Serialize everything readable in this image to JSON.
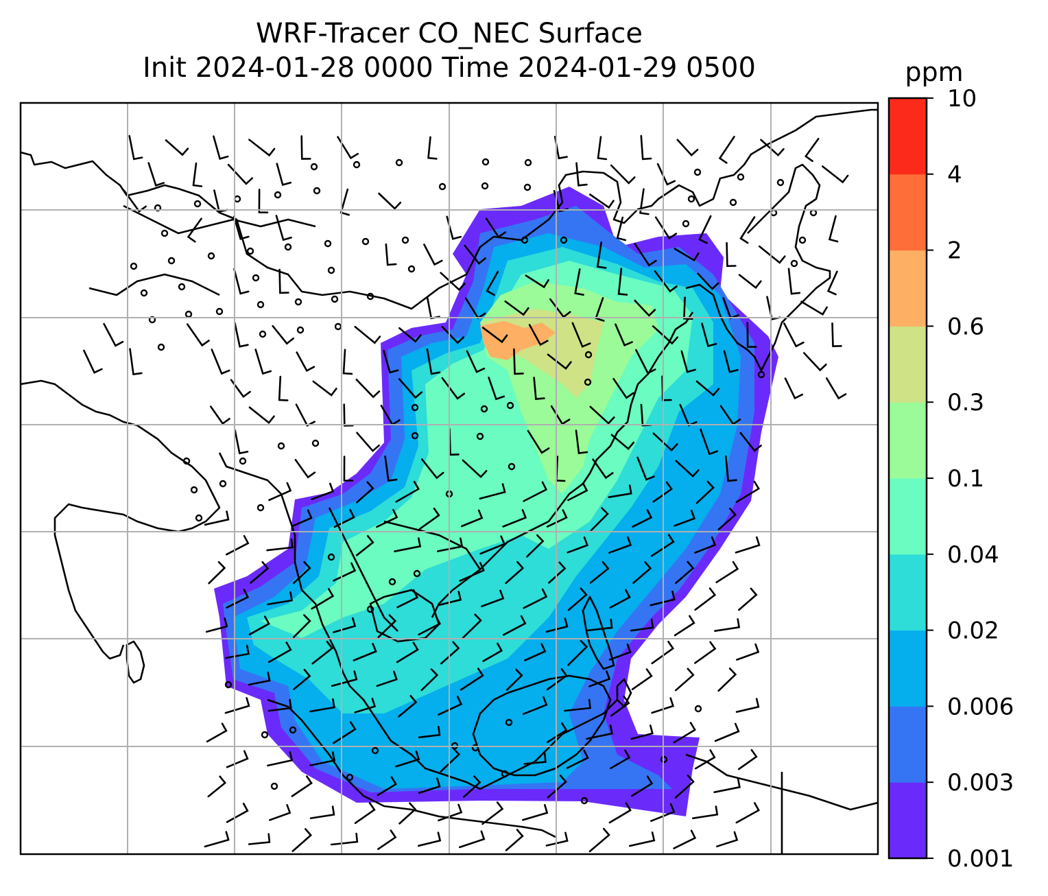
{
  "title": {
    "line1": "WRF-Tracer CO_NEC Surface",
    "line2": "Init 2024-01-28 0000 Time 2024-01-29 0500"
  },
  "colorbar": {
    "unit": "ppm",
    "levels": [
      "0.001",
      "0.003",
      "0.006",
      "0.02",
      "0.04",
      "0.1",
      "0.3",
      "0.6",
      "2",
      "4",
      "10"
    ],
    "colors": [
      "#6a2bfa",
      "#3575f4",
      "#05aeec",
      "#2edcd8",
      "#6afcc0",
      "#9afb98",
      "#cfe285",
      "#fdaf64",
      "#fe6e39",
      "#fc2a1a"
    ]
  },
  "map": {
    "variable": "CO_NEC surface tracer concentration",
    "overlay": "wind barbs",
    "gridlines": true
  }
}
